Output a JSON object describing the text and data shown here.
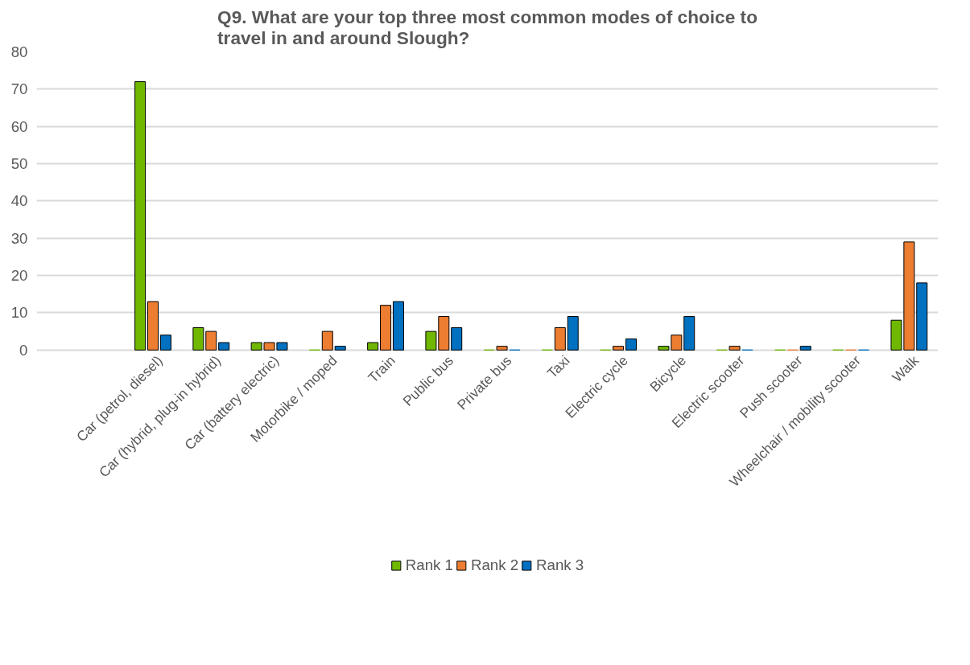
{
  "chart_data": {
    "type": "bar",
    "title": "Q9. What are your top three most common modes of choice to travel in and around Slough?",
    "categories": [
      "Car (petrol, diesel)",
      "Car (hybrid, plug-in hybrid)",
      "Car (battery electric)",
      "Motorbike / moped",
      "Train",
      "Public bus",
      "Private bus",
      "Taxi",
      "Electric cycle",
      "Bicycle",
      "Electric scooter",
      "Push scooter",
      "Wheelchair / mobility scooter",
      "Walk"
    ],
    "series": [
      {
        "name": "Rank 1",
        "color": "#70b800",
        "values": [
          72,
          6,
          2,
          0,
          2,
          5,
          0,
          0,
          0,
          1,
          0,
          0,
          0,
          8
        ]
      },
      {
        "name": "Rank 2",
        "color": "#ed7d31",
        "values": [
          13,
          5,
          2,
          5,
          12,
          9,
          1,
          6,
          1,
          4,
          1,
          0,
          0,
          29
        ]
      },
      {
        "name": "Rank 3",
        "color": "#0070c0",
        "values": [
          4,
          2,
          2,
          1,
          13,
          6,
          0,
          9,
          3,
          9,
          0,
          1,
          0,
          18
        ]
      }
    ],
    "ylim": [
      0,
      80
    ],
    "yticks": [
      0,
      10,
      20,
      30,
      40,
      50,
      60,
      70,
      80
    ],
    "grid": "y",
    "legend": "bottom"
  }
}
